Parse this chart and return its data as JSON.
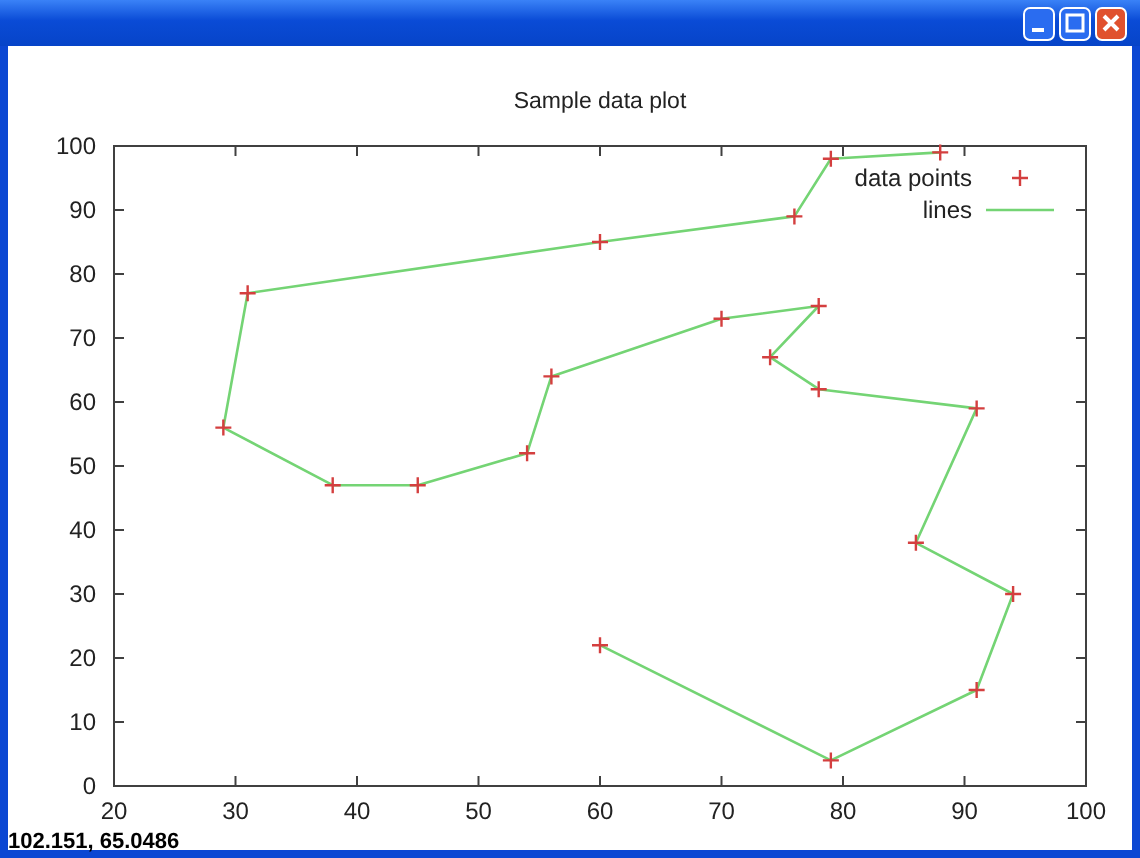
{
  "chart_data": {
    "type": "scatter",
    "title": "Sample data plot",
    "annotations": [
      "102.151, 65.0486"
    ],
    "xlim": [
      20,
      100
    ],
    "xticks": [
      20,
      30,
      40,
      50,
      60,
      70,
      80,
      90,
      100
    ],
    "ylim": [
      0,
      100
    ],
    "yticks": [
      0,
      10,
      20,
      30,
      40,
      50,
      60,
      70,
      80,
      90,
      100
    ],
    "legend": "top right",
    "series": [
      {
        "name": "data points",
        "type": "scatter",
        "color": "#d43f3f",
        "marker": "cross",
        "x": [
          60,
          79,
          91,
          94,
          86,
          91,
          78,
          74,
          78,
          70,
          56,
          54,
          45,
          38,
          29,
          31,
          60,
          76,
          79,
          88
        ],
        "values": [
          22,
          4,
          15,
          30,
          38,
          59,
          62,
          67,
          75,
          73,
          64,
          52,
          47,
          47,
          56,
          77,
          85,
          89,
          98,
          99
        ]
      },
      {
        "name": "lines",
        "type": "line",
        "color": "#74d474",
        "line_style": "solid",
        "x": [
          60,
          79,
          91,
          94,
          86,
          91,
          78,
          74,
          78,
          70,
          56,
          54,
          45,
          38,
          29,
          31,
          60,
          76,
          79,
          88
        ],
        "values": [
          22,
          4,
          15,
          30,
          38,
          59,
          62,
          67,
          75,
          73,
          64,
          52,
          47,
          47,
          56,
          77,
          85,
          89,
          98,
          99
        ]
      }
    ]
  }
}
